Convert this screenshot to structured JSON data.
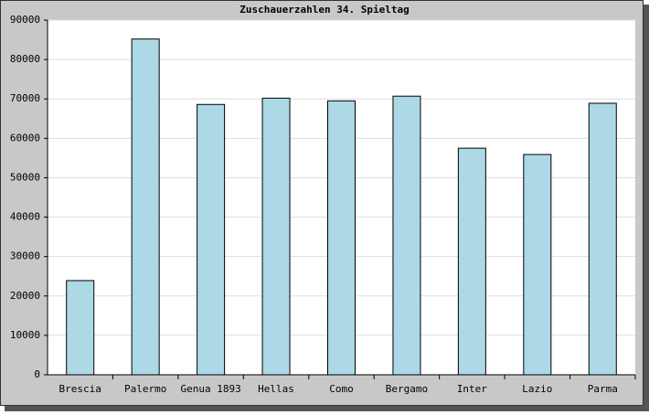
{
  "chart_data": {
    "type": "bar",
    "title": "Zuschauerzahlen 34. Spieltag",
    "categories": [
      "Brescia",
      "Palermo",
      "Genua 1893",
      "Hellas",
      "Como",
      "Bergamo",
      "Inter",
      "Lazio",
      "Parma"
    ],
    "values": [
      23900,
      85200,
      68600,
      70200,
      69500,
      70700,
      57500,
      55900,
      68900
    ],
    "color": "#add8e6",
    "ylim": [
      0,
      90000
    ],
    "yticks": [
      0,
      10000,
      20000,
      30000,
      40000,
      50000,
      60000,
      70000,
      80000,
      90000
    ],
    "grid": true
  }
}
